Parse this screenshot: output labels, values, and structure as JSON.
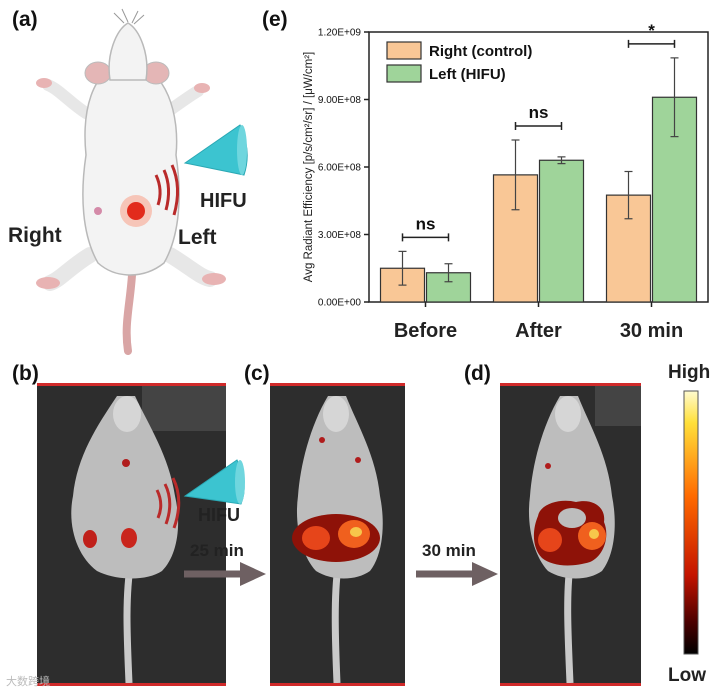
{
  "panels": {
    "a": "(a)",
    "b": "(b)",
    "c": "(c)",
    "d": "(d)",
    "e": "(e)"
  },
  "illustration": {
    "right_label": "Right",
    "left_label": "Left",
    "hifu_label": "HIFU"
  },
  "imaging": {
    "hifu_label": "HIFU",
    "step1_time": "25 min",
    "step2_time": "30 min"
  },
  "scale_bar": {
    "high": "High",
    "low": "Low"
  },
  "watermark": "大数跨境",
  "colors": {
    "right_bar": "#f9c796",
    "left_bar": "#9fd49a",
    "bar_stroke": "#333333",
    "transducer": "#3cc4d0",
    "waves": "#b92a2a",
    "arrow": "#6e6062"
  },
  "chart_data": {
    "type": "bar",
    "categories": [
      "Before",
      "After",
      "30 min"
    ],
    "series": [
      {
        "name": "Right (control)",
        "values": [
          150000000,
          565000000,
          475000000
        ],
        "errors": [
          75000000,
          155000000,
          105000000
        ],
        "color": "#f9c796"
      },
      {
        "name": "Left (HIFU)",
        "values": [
          130000000,
          630000000,
          910000000
        ],
        "errors": [
          40000000,
          15000000,
          175000000
        ],
        "color": "#9fd49a"
      }
    ],
    "ylabel": "Avg Radiant Efficiency [p/s/cm²/sr] / [μW/cm²]",
    "xlabel": "",
    "ylim": [
      0,
      1200000000
    ],
    "yticks": [
      0,
      300000000,
      600000000,
      900000000,
      1200000000
    ],
    "ytick_labels": [
      "0.00E+00",
      "3.00E+08",
      "6.00E+08",
      "9.00E+08",
      "1.20E+09"
    ],
    "significance": [
      "ns",
      "ns",
      "*"
    ],
    "legend_position": "top-left"
  }
}
